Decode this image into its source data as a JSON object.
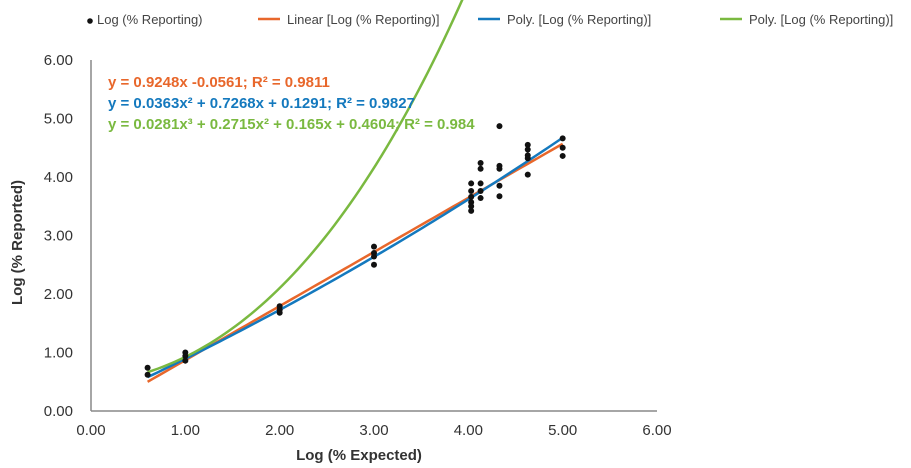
{
  "chart_data": {
    "type": "scatter",
    "xlabel": "Log (% Expected)",
    "ylabel": "Log (% Reported)",
    "xlim": [
      0,
      6
    ],
    "ylim": [
      0,
      6
    ],
    "xticks": [
      "0.00",
      "1.00",
      "2.00",
      "3.00",
      "4.00",
      "5.00",
      "6.00"
    ],
    "yticks": [
      "0.00",
      "1.00",
      "2.00",
      "3.00",
      "4.00",
      "5.00",
      "6.00"
    ],
    "grid": false,
    "legend_position": "top",
    "series": [
      {
        "name": "Log (% Reporting)",
        "kind": "scatter",
        "color": "#111111",
        "points": [
          [
            0.6,
            0.74
          ],
          [
            0.6,
            0.62
          ],
          [
            1.0,
            1.0
          ],
          [
            1.0,
            0.94
          ],
          [
            1.0,
            0.86
          ],
          [
            2.0,
            1.79
          ],
          [
            2.0,
            1.73
          ],
          [
            2.0,
            1.68
          ],
          [
            3.0,
            2.81
          ],
          [
            3.0,
            2.7
          ],
          [
            3.0,
            2.64
          ],
          [
            3.0,
            2.5
          ],
          [
            4.03,
            3.89
          ],
          [
            4.03,
            3.76
          ],
          [
            4.03,
            3.66
          ],
          [
            4.03,
            3.57
          ],
          [
            4.03,
            3.5
          ],
          [
            4.03,
            3.42
          ],
          [
            4.13,
            4.24
          ],
          [
            4.13,
            4.14
          ],
          [
            4.13,
            3.89
          ],
          [
            4.13,
            3.76
          ],
          [
            4.13,
            3.64
          ],
          [
            4.33,
            4.87
          ],
          [
            4.33,
            4.19
          ],
          [
            4.33,
            4.14
          ],
          [
            4.33,
            3.85
          ],
          [
            4.33,
            3.67
          ],
          [
            4.63,
            4.55
          ],
          [
            4.63,
            4.47
          ],
          [
            4.63,
            4.37
          ],
          [
            4.63,
            4.32
          ],
          [
            4.63,
            4.04
          ],
          [
            5.0,
            4.66
          ],
          [
            5.0,
            4.5
          ],
          [
            5.0,
            4.36
          ]
        ]
      },
      {
        "name": "Linear [Log (% Reporting)]",
        "kind": "trendline",
        "color": "#e8672b",
        "coefficients": [
          -0.0561,
          0.9248
        ],
        "x_range": [
          0.6,
          5.0
        ]
      },
      {
        "name": "Poly. [Log (% Reporting)]",
        "kind": "trendline",
        "color": "#1479be",
        "coefficients": [
          0.1291,
          0.7268,
          0.0363
        ],
        "x_range": [
          0.6,
          5.0
        ]
      },
      {
        "name": "Poly. [Log (% Reporting)]",
        "kind": "trendline",
        "color": "#7ab940",
        "coefficients": [
          0.4604,
          0.165,
          0.2715,
          0.0281
        ],
        "x_range": [
          0.6,
          5.0
        ]
      }
    ],
    "annotations": [
      {
        "text": "y = 0.9248x -0.0561; R² = 0.9811",
        "color": "#e8672b"
      },
      {
        "text": "y = 0.0363x² + 0.7268x + 0.1291; R² = 0.9827",
        "color": "#1479be"
      },
      {
        "text": "y = 0.0281x³ + 0.2715x² + 0.165x + 0.4604; R² = 0.984",
        "color": "#7ab940"
      }
    ]
  }
}
